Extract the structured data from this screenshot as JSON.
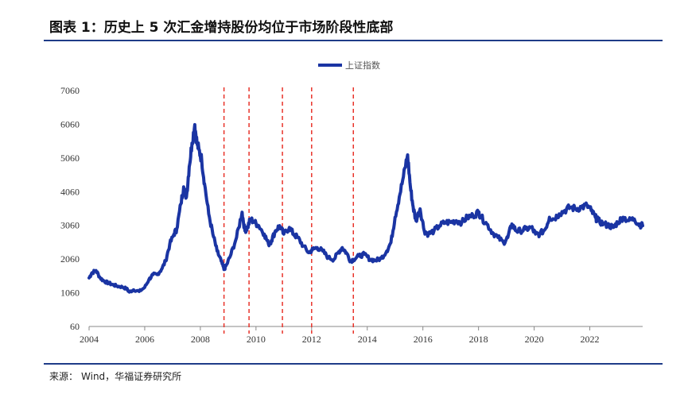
{
  "figure": {
    "title": "图表 1：历史上 5 次汇金增持股份均位于市场阶段性底部",
    "source_label": "来源：",
    "source_text": "Wind，华福证券研究所"
  },
  "colors": {
    "series": "#1a34a3",
    "event_lines": "#e8332a",
    "rule": "#1f3c88",
    "axis": "#888888"
  },
  "chart_data": {
    "type": "line",
    "title": "",
    "xlabel": "",
    "ylabel": "",
    "xlim": [
      2004,
      2023.9
    ],
    "ylim": [
      60,
      7060
    ],
    "y_ticks": [
      "60",
      "1060",
      "2060",
      "3060",
      "4060",
      "5060",
      "6060",
      "7060"
    ],
    "x_ticks": [
      "2004",
      "2006",
      "2008",
      "2010",
      "2012",
      "2014",
      "2016",
      "2018",
      "2020",
      "2022"
    ],
    "legend": {
      "position": "top-center"
    },
    "grid": false,
    "series": [
      {
        "name": "上证指数",
        "x": [
          2004.0,
          2004.1,
          2004.25,
          2004.4,
          2004.55,
          2004.7,
          2004.85,
          2005.0,
          2005.2,
          2005.35,
          2005.45,
          2005.6,
          2005.8,
          2006.0,
          2006.15,
          2006.3,
          2006.45,
          2006.6,
          2006.75,
          2006.9,
          2007.05,
          2007.15,
          2007.3,
          2007.4,
          2007.5,
          2007.6,
          2007.7,
          2007.8,
          2007.88,
          2007.95,
          2008.05,
          2008.15,
          2008.3,
          2008.45,
          2008.6,
          2008.75,
          2008.85,
          2008.95,
          2009.1,
          2009.3,
          2009.5,
          2009.6,
          2009.7,
          2009.8,
          2009.95,
          2010.1,
          2010.3,
          2010.45,
          2010.55,
          2010.7,
          2010.85,
          2011.0,
          2011.2,
          2011.35,
          2011.5,
          2011.7,
          2011.9,
          2012.05,
          2012.2,
          2012.4,
          2012.6,
          2012.8,
          2012.95,
          2013.1,
          2013.25,
          2013.4,
          2013.5,
          2013.7,
          2013.9,
          2014.1,
          2014.3,
          2014.5,
          2014.7,
          2014.85,
          2015.0,
          2015.15,
          2015.3,
          2015.45,
          2015.55,
          2015.65,
          2015.75,
          2015.9,
          2016.05,
          2016.2,
          2016.4,
          2016.6,
          2016.8,
          2017.0,
          2017.2,
          2017.4,
          2017.6,
          2017.8,
          2018.0,
          2018.1,
          2018.3,
          2018.5,
          2018.7,
          2018.9,
          2019.05,
          2019.2,
          2019.35,
          2019.5,
          2019.7,
          2019.9,
          2020.05,
          2020.2,
          2020.4,
          2020.55,
          2020.7,
          2020.9,
          2021.1,
          2021.3,
          2021.5,
          2021.7,
          2021.9,
          2022.05,
          2022.2,
          2022.3,
          2022.5,
          2022.7,
          2022.85,
          2023.0,
          2023.2,
          2023.4,
          2023.6,
          2023.75,
          2023.9
        ],
        "values": [
          1500,
          1650,
          1720,
          1500,
          1400,
          1350,
          1300,
          1260,
          1230,
          1180,
          1080,
          1150,
          1100,
          1220,
          1450,
          1600,
          1600,
          1750,
          2000,
          2500,
          2800,
          2950,
          3700,
          4200,
          3900,
          4800,
          5500,
          6050,
          5500,
          5300,
          5000,
          4300,
          3400,
          2800,
          2300,
          2000,
          1750,
          1900,
          2200,
          2700,
          3450,
          2900,
          3000,
          3250,
          3150,
          3050,
          2800,
          2500,
          2600,
          2900,
          3050,
          2800,
          3000,
          2800,
          2700,
          2450,
          2250,
          2350,
          2400,
          2300,
          2100,
          2050,
          2250,
          2400,
          2250,
          2000,
          2050,
          2150,
          2200,
          2050,
          2020,
          2080,
          2300,
          2550,
          3300,
          3900,
          4500,
          5150,
          4200,
          3600,
          3200,
          3550,
          2900,
          2800,
          2900,
          3050,
          3150,
          3150,
          3200,
          3150,
          3300,
          3350,
          3450,
          3300,
          3100,
          2850,
          2700,
          2550,
          2700,
          3100,
          2900,
          2900,
          2950,
          3000,
          2800,
          2800,
          2950,
          3300,
          3250,
          3400,
          3500,
          3600,
          3550,
          3600,
          3650,
          3500,
          3300,
          3200,
          3100,
          3050,
          3000,
          3150,
          3300,
          3200,
          3250,
          3100,
          3050
        ]
      }
    ],
    "events": [
      2008.85,
      2009.75,
      2010.95,
      2012.0,
      2013.5
    ]
  }
}
